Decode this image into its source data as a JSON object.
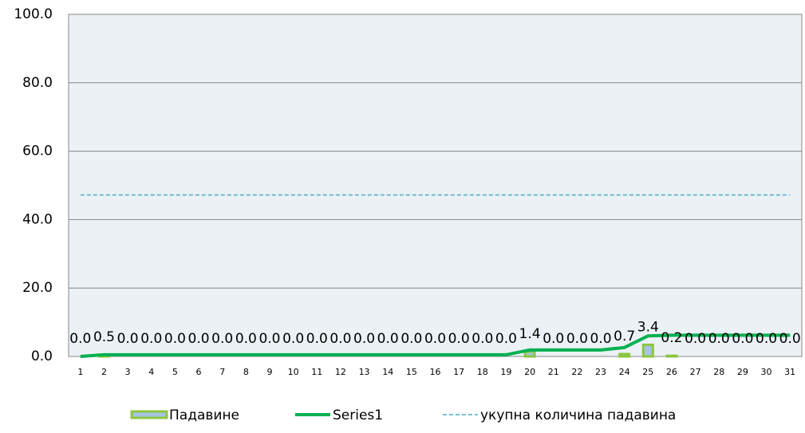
{
  "chart_data": {
    "type": "bar",
    "categories": [
      "1",
      "2",
      "3",
      "4",
      "5",
      "6",
      "7",
      "8",
      "9",
      "10",
      "11",
      "12",
      "13",
      "14",
      "15",
      "16",
      "17",
      "18",
      "19",
      "20",
      "21",
      "22",
      "23",
      "24",
      "25",
      "26",
      "27",
      "28",
      "29",
      "30",
      "31"
    ],
    "series": [
      {
        "name": "Падавине",
        "type": "bar",
        "color": "#a7c4e2",
        "edgecolor": "#8cc63f",
        "values": [
          0,
          0.5,
          0,
          0,
          0,
          0,
          0,
          0,
          0,
          0,
          0,
          0,
          0,
          0,
          0,
          0,
          0,
          0,
          0,
          1.4,
          0,
          0,
          0,
          0.7,
          3.4,
          0.2,
          0,
          0,
          0,
          0,
          0
        ],
        "value_labels": [
          "0.0",
          "0.5",
          "0.0",
          "0.0",
          "0.0",
          "0.0",
          "0.0",
          "0.0",
          "0.0",
          "0.0",
          "0.0",
          "0.0",
          "0.0",
          "0.0",
          "0.0",
          "0.0",
          "0.0",
          "0.0",
          "0.0",
          "1.4",
          "0.0",
          "0.0",
          "0.0",
          "0.7",
          "3.4",
          "0.2",
          "0.0",
          "0.0",
          "0.0",
          "0.0",
          "0.0"
        ]
      },
      {
        "name": "Series1",
        "type": "line",
        "color": "#00b050",
        "values": [
          0,
          0.5,
          0.5,
          0.5,
          0.5,
          0.5,
          0.5,
          0.5,
          0.5,
          0.5,
          0.5,
          0.5,
          0.5,
          0.5,
          0.5,
          0.5,
          0.5,
          0.5,
          0.5,
          1.9,
          1.9,
          1.9,
          1.9,
          2.6,
          6.0,
          6.2,
          6.2,
          6.2,
          6.2,
          6.2,
          6.2
        ]
      },
      {
        "name": "укупна количина падавина",
        "type": "line",
        "dashed": true,
        "color": "#4bacc6",
        "values": [
          47.2,
          47.2,
          47.2,
          47.2,
          47.2,
          47.2,
          47.2,
          47.2,
          47.2,
          47.2,
          47.2,
          47.2,
          47.2,
          47.2,
          47.2,
          47.2,
          47.2,
          47.2,
          47.2,
          47.2,
          47.2,
          47.2,
          47.2,
          47.2,
          47.2,
          47.2,
          47.2,
          47.2,
          47.2,
          47.2,
          47.2
        ]
      }
    ],
    "ylim": [
      0,
      100
    ],
    "yticks": [
      {
        "value": 0,
        "label": "0.0"
      },
      {
        "value": 20,
        "label": "20.0"
      },
      {
        "value": 40,
        "label": "40.0"
      },
      {
        "value": 60,
        "label": "60.0"
      },
      {
        "value": 80,
        "label": "80.0"
      },
      {
        "value": 100,
        "label": "100.0"
      }
    ],
    "grid": true,
    "legend": "bottom"
  }
}
